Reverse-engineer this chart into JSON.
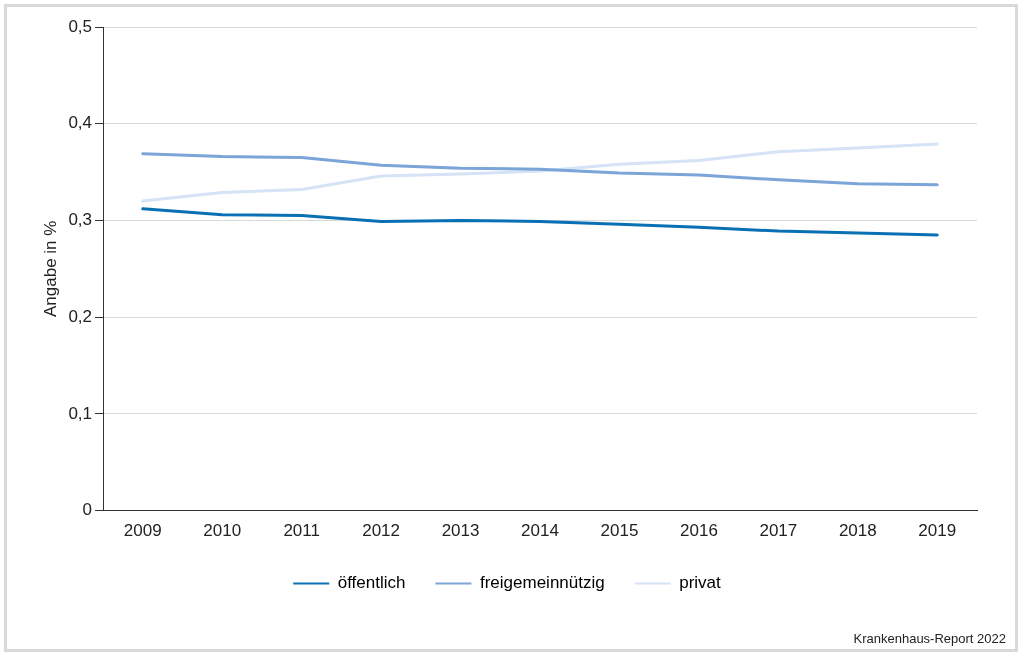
{
  "chart_data": {
    "type": "line",
    "ylabel": "Angabe in %",
    "categories": [
      "2009",
      "2010",
      "2011",
      "2012",
      "2013",
      "2014",
      "2015",
      "2016",
      "2017",
      "2018",
      "2019"
    ],
    "series": [
      {
        "name": "öffentlich",
        "color": "#0a70b4",
        "values": [
          0.312,
          0.306,
          0.305,
          0.299,
          0.3,
          0.299,
          0.296,
          0.293,
          0.289,
          0.287,
          0.285
        ]
      },
      {
        "name": "freigemeinnützig",
        "color": "#7ba4d8",
        "values": [
          0.369,
          0.366,
          0.365,
          0.357,
          0.354,
          0.353,
          0.349,
          0.347,
          0.342,
          0.338,
          0.337
        ]
      },
      {
        "name": "privat",
        "color": "#d6e2f6",
        "values": [
          0.32,
          0.329,
          0.332,
          0.346,
          0.348,
          0.351,
          0.358,
          0.362,
          0.371,
          0.375,
          0.379
        ]
      }
    ],
    "ylim": [
      0,
      0.5
    ],
    "yticks": [
      {
        "value": 0,
        "label": "0"
      },
      {
        "value": 0.1,
        "label": "0,1"
      },
      {
        "value": 0.2,
        "label": "0,2"
      },
      {
        "value": 0.3,
        "label": "0,3"
      },
      {
        "value": 0.4,
        "label": "0,4"
      },
      {
        "value": 0.5,
        "label": "0,5"
      }
    ],
    "grid": "y",
    "legend": "bottom",
    "marker": "none",
    "line_style": "solid",
    "annotations": [
      "Krankenhaus-Report 2022"
    ]
  }
}
